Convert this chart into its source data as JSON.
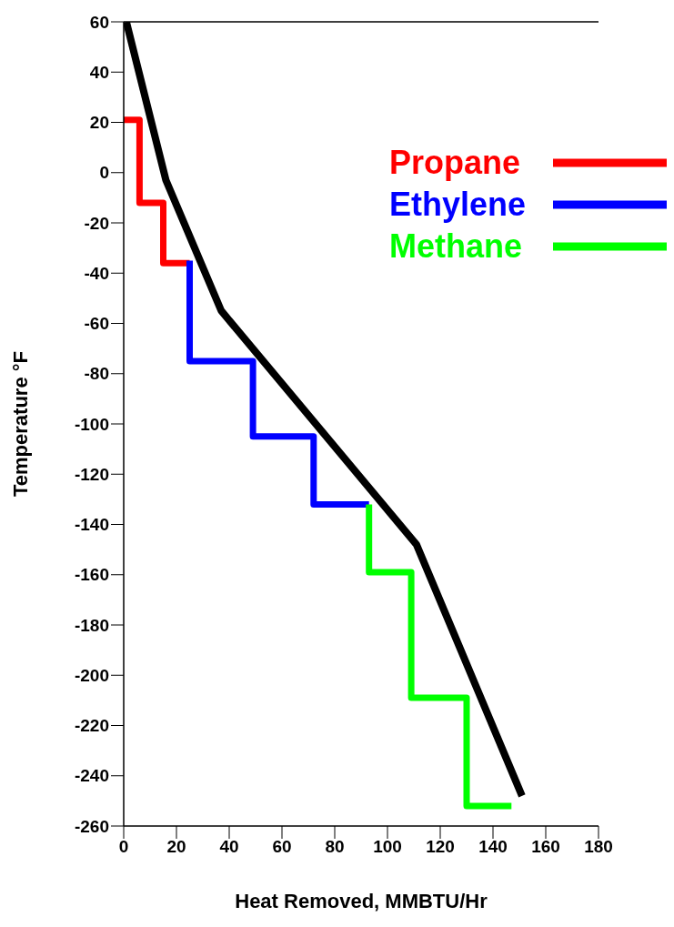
{
  "chart_data": {
    "type": "line",
    "xlabel": "Heat Removed, MMBTU/Hr",
    "ylabel": "Temperature °F",
    "xlim": [
      0,
      180
    ],
    "xticks": [
      0,
      20,
      40,
      60,
      80,
      100,
      120,
      140,
      160,
      180
    ],
    "ylim": [
      -260,
      60
    ],
    "yticks": [
      -260,
      -240,
      -220,
      -200,
      -180,
      -160,
      -140,
      -120,
      -100,
      -80,
      -60,
      -40,
      -20,
      0,
      20,
      40,
      60
    ],
    "legend": "top right",
    "ref_lines": [
      {
        "axis": "y",
        "value": 60,
        "color": "#000000"
      }
    ],
    "series": [
      {
        "color": "#000000",
        "x": [
          1,
          16,
          37,
          111,
          151
        ],
        "values": [
          60,
          -3,
          -55,
          -148,
          -248
        ]
      },
      {
        "name": "Propane",
        "color": "#ff0000",
        "x": [
          0,
          6,
          6,
          15,
          15,
          25
        ],
        "values": [
          21,
          21,
          -12,
          -12,
          -36,
          -36
        ]
      },
      {
        "name": "Ethylene",
        "color": "#0000ff",
        "x": [
          25,
          25,
          49,
          49,
          72,
          72,
          93
        ],
        "values": [
          -35,
          -75,
          -75,
          -105,
          -105,
          -132,
          -132
        ]
      },
      {
        "name": "Methane",
        "color": "#00ff00",
        "x": [
          93,
          93,
          109,
          109,
          130,
          130,
          147
        ],
        "values": [
          -132,
          -159,
          -159,
          -209,
          -209,
          -252,
          -252
        ]
      }
    ]
  }
}
